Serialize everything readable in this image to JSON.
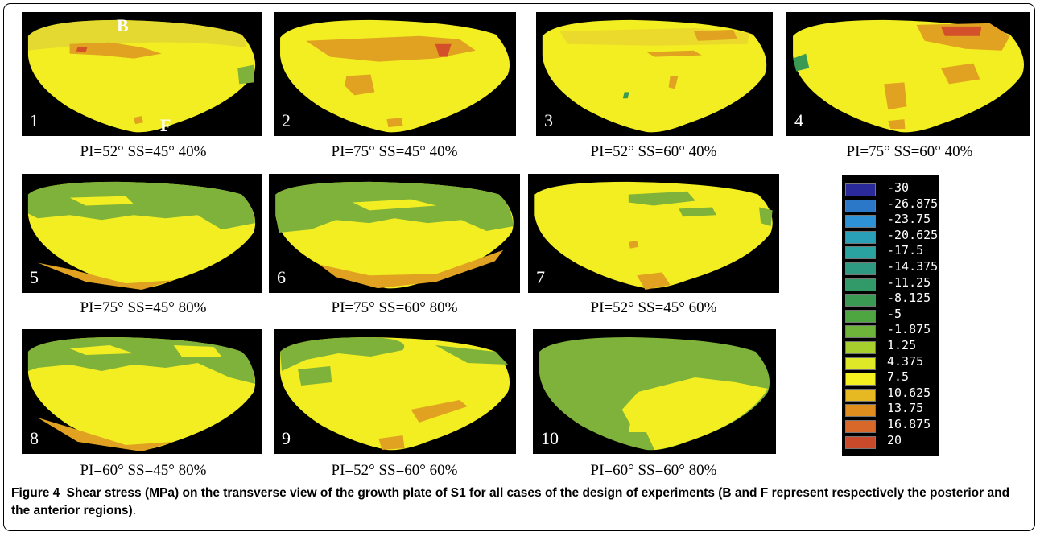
{
  "colors": {
    "yellow": "#f2ee21",
    "green": "#7fb23a",
    "orange": "#e0a220",
    "red": "#d4502a",
    "panel_bg": "#000000"
  },
  "panels": [
    {
      "number": "1",
      "caption": "PI=52° SS=45° 40%"
    },
    {
      "number": "2",
      "caption": "PI=75° SS=45° 40%"
    },
    {
      "number": "3",
      "caption": "PI=52° SS=60° 40%"
    },
    {
      "number": "4",
      "caption": "PI=75° SS=60° 40%"
    },
    {
      "number": "5",
      "caption": "PI=75° SS=45° 80%"
    },
    {
      "number": "6",
      "caption": "PI=75° SS=60° 80%"
    },
    {
      "number": "7",
      "caption": "PI=52° SS=45° 60%"
    },
    {
      "number": "8",
      "caption": "PI=60° SS=45° 80%"
    },
    {
      "number": "9",
      "caption": "PI=52° SS=60° 60%"
    },
    {
      "number": "10",
      "caption": "PI=60° SS=60° 80%"
    }
  ],
  "markers": {
    "posterior": "B",
    "anterior": "F"
  },
  "legend": [
    {
      "label": "-30",
      "color": "#2a2a9a"
    },
    {
      "label": "-26.875",
      "color": "#2b78c8"
    },
    {
      "label": "-23.75",
      "color": "#2d93d6"
    },
    {
      "label": "-20.625",
      "color": "#2a9fb8"
    },
    {
      "label": "-17.5",
      "color": "#2aa3a0"
    },
    {
      "label": "-14.375",
      "color": "#2e9a82"
    },
    {
      "label": "-11.25",
      "color": "#329a68"
    },
    {
      "label": "-8.125",
      "color": "#3a9a54"
    },
    {
      "label": "-5",
      "color": "#4da640"
    },
    {
      "label": "-1.875",
      "color": "#6fb43a"
    },
    {
      "label": "1.25",
      "color": "#a6cf2e"
    },
    {
      "label": "4.375",
      "color": "#dfe826"
    },
    {
      "label": "7.5",
      "color": "#f5f020"
    },
    {
      "label": "10.625",
      "color": "#e6b822"
    },
    {
      "label": "13.75",
      "color": "#e08f1e"
    },
    {
      "label": "16.875",
      "color": "#d8682a"
    },
    {
      "label": "20",
      "color": "#c84a2a"
    }
  ],
  "figure_caption": {
    "number": "Figure 4",
    "text": "Shear stress (MPa) on the transverse view of the growth plate of S1 for all cases of the design of experiments (B and F represent respectively the posterior and the anterior regions)",
    "end": "."
  }
}
